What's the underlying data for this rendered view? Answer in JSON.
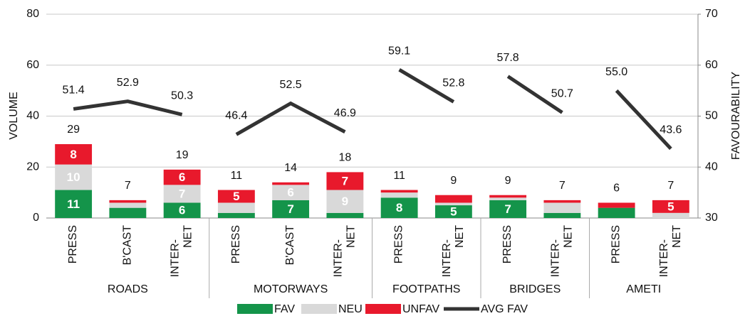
{
  "chart_data": {
    "type": "bar",
    "stacked": true,
    "ylabel": "VOLUME",
    "y2label": "FAVOURABILITY",
    "categories": [
      "PRESS",
      "B'CAST",
      "INTER-NET",
      "PRESS",
      "B'CAST",
      "INTER-NET",
      "PRESS",
      "INTER-NET",
      "PRESS",
      "INTER-NET",
      "PRESS",
      "INTER-NET"
    ],
    "groups": [
      {
        "name": "ROADS",
        "span": 3
      },
      {
        "name": "MOTORWAYS",
        "span": 3
      },
      {
        "name": "FOOTPATHS",
        "span": 2
      },
      {
        "name": "BRIDGES",
        "span": 2
      },
      {
        "name": "AMETI",
        "span": 2
      }
    ],
    "series": [
      {
        "name": "FAV",
        "color": "#14944a",
        "values": [
          11,
          4,
          6,
          2,
          7,
          2,
          8,
          5,
          7,
          2,
          4,
          0
        ],
        "value_labels": [
          "11",
          null,
          "6",
          null,
          "7",
          null,
          "8",
          "5",
          "7",
          null,
          null,
          null
        ]
      },
      {
        "name": "NEU",
        "color": "#d9d9d9",
        "values": [
          10,
          2,
          7,
          4,
          6,
          9,
          2,
          1,
          1,
          4,
          0,
          2
        ],
        "value_labels": [
          "10",
          null,
          "7",
          null,
          "6",
          "9",
          null,
          null,
          null,
          null,
          null,
          null
        ]
      },
      {
        "name": "UNFAV",
        "color": "#e8192c",
        "values": [
          8,
          1,
          6,
          5,
          1,
          7,
          1,
          3,
          1,
          1,
          2,
          5
        ],
        "value_labels": [
          "8",
          null,
          "6",
          "5",
          null,
          "7",
          null,
          null,
          null,
          null,
          null,
          "5"
        ]
      },
      {
        "name": "AVG FAV",
        "type": "line",
        "axis": "y2",
        "color": "#333333",
        "values": [
          51.4,
          52.9,
          50.3,
          46.4,
          52.5,
          46.9,
          59.1,
          52.8,
          57.8,
          50.7,
          55.0,
          43.6
        ],
        "value_labels": [
          "51.4",
          "52.9",
          "50.3",
          "46.4",
          "52.5",
          "46.9",
          "59.1",
          "52.8",
          "57.8",
          "50.7",
          "55.0",
          "43.6"
        ]
      }
    ],
    "totals": [
      29,
      7,
      19,
      11,
      14,
      18,
      11,
      9,
      9,
      7,
      6,
      7
    ],
    "ylim": [
      0,
      80
    ],
    "yticks": [
      0,
      20,
      40,
      60,
      80
    ],
    "y2lim": [
      30,
      70
    ],
    "y2ticks": [
      30,
      40,
      50,
      60,
      70
    ],
    "grid": true,
    "legend": "bottom"
  }
}
